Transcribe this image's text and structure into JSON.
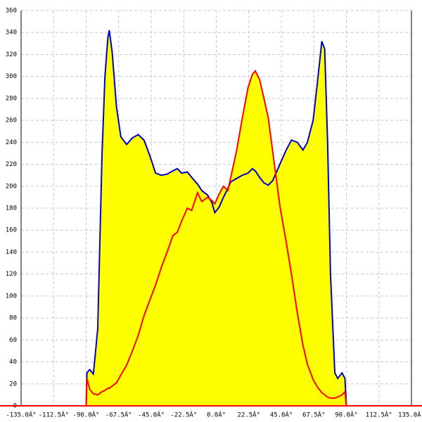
{
  "chart_data": {
    "type": "area",
    "x": [
      -90,
      -89.5,
      -87.5,
      -85,
      -82,
      -79,
      -77,
      -75,
      -74,
      -72,
      -69,
      -66,
      -62,
      -58,
      -54,
      -50,
      -46,
      -42,
      -38,
      -34,
      -30,
      -27,
      -24,
      -20,
      -17,
      -13,
      -10,
      -6,
      -3,
      -1,
      2,
      5,
      8,
      10,
      14,
      18,
      22,
      25,
      27,
      30,
      33,
      36,
      39,
      44,
      48,
      52,
      56,
      60,
      63,
      67,
      70,
      73,
      75,
      77,
      79,
      82,
      84,
      87,
      89,
      90
    ],
    "fill_color": "#ffff00",
    "series": [
      {
        "color": "#0000cc",
        "values": [
          0,
          30,
          33,
          29,
          70,
          230,
          300,
          335,
          342,
          322,
          272,
          245,
          238,
          244,
          247,
          242,
          228,
          212,
          210,
          211,
          214,
          216,
          212,
          213,
          208,
          202,
          196,
          192,
          185,
          176,
          181,
          190,
          198,
          204,
          207,
          210,
          212,
          216,
          214,
          208,
          203,
          201,
          205,
          220,
          232,
          242,
          240,
          233,
          240,
          260,
          295,
          332,
          325,
          240,
          120,
          30,
          25,
          30,
          25,
          0
        ]
      },
      {
        "color": "#ff0000",
        "values": [
          0,
          25,
          15,
          11,
          10,
          13,
          14,
          16,
          16,
          18,
          21,
          28,
          37,
          50,
          64,
          82,
          96,
          110,
          126,
          140,
          155,
          158,
          168,
          180,
          178,
          194,
          186,
          190,
          187,
          184,
          193,
          200,
          196,
          208,
          232,
          262,
          290,
          302,
          305,
          297,
          280,
          262,
          232,
          182,
          152,
          120,
          85,
          55,
          38,
          24,
          17,
          12,
          10,
          8,
          7,
          7,
          8,
          10,
          13,
          0
        ]
      }
    ],
    "xlim": [
      -135,
      135
    ],
    "xticks": [
      {
        "value": -135,
        "label": "-135.0Â°"
      },
      {
        "value": -112.5,
        "label": "-112.5Â°"
      },
      {
        "value": -90,
        "label": "-90.0Â°"
      },
      {
        "value": -67.5,
        "label": "-67.5Â°"
      },
      {
        "value": -45,
        "label": "-45.0Â°"
      },
      {
        "value": -22.5,
        "label": "-22.5Â°"
      },
      {
        "value": 0,
        "label": "0.0Â°"
      },
      {
        "value": 22.5,
        "label": "22.5Â°"
      },
      {
        "value": 45,
        "label": "45.0Â°"
      },
      {
        "value": 67.5,
        "label": "67.5Â°"
      },
      {
        "value": 90,
        "label": "90.0Â°"
      },
      {
        "value": 112.5,
        "label": "112.5Â°"
      },
      {
        "value": 135,
        "label": "135.0Â°"
      }
    ],
    "ylim": [
      0,
      360
    ],
    "yticks": [
      0,
      20,
      40,
      60,
      80,
      100,
      120,
      140,
      160,
      180,
      200,
      220,
      240,
      260,
      280,
      300,
      320,
      340,
      360
    ],
    "grid": true
  }
}
